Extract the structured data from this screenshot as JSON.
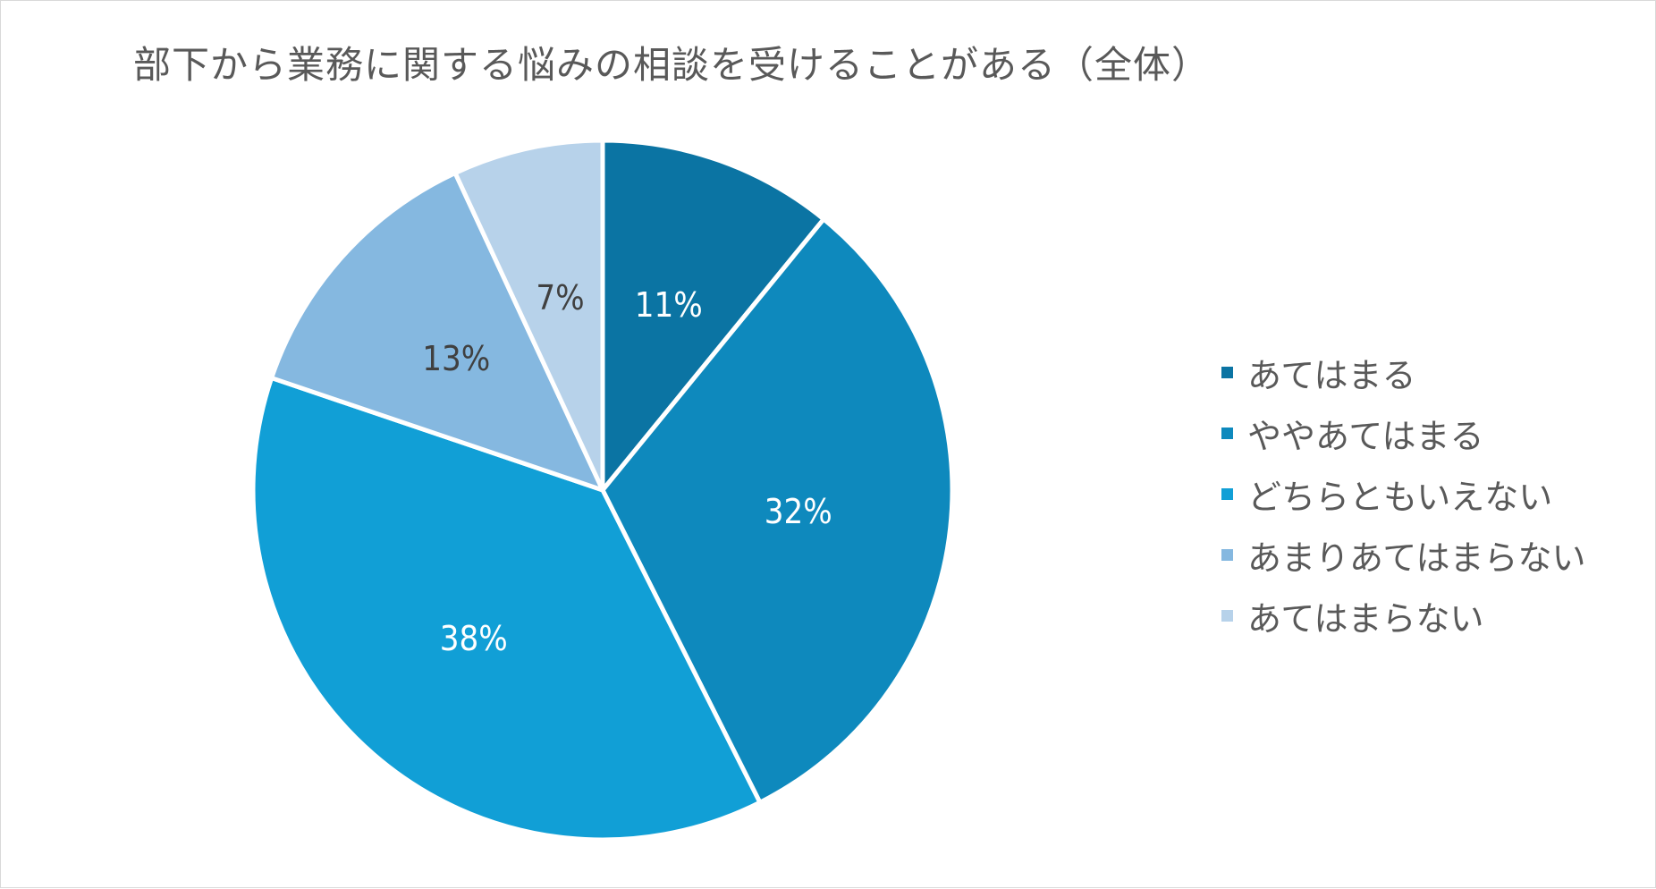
{
  "chart_data": {
    "type": "pie",
    "title": "部下から業務に関する悩みの相談を受けることがある（全体）",
    "unit": "%",
    "slices": [
      {
        "label": "あてはまる",
        "value": 11,
        "color": "#0b74a3"
      },
      {
        "label": "ややあてはまる",
        "value": 32,
        "color": "#0e89bd"
      },
      {
        "label": "どちらともいえない",
        "value": 38,
        "color": "#119fd6"
      },
      {
        "label": "あまりあてはまらない",
        "value": 13,
        "color": "#85b8e0"
      },
      {
        "label": "あてはまらない",
        "value": 7,
        "color": "#b7d2ea"
      }
    ],
    "data_label_colors": [
      "#ffffff",
      "#ffffff",
      "#ffffff",
      "#404040",
      "#404040"
    ],
    "legend_position": "right",
    "start_angle": "12 o'clock",
    "direction": "clockwise"
  }
}
